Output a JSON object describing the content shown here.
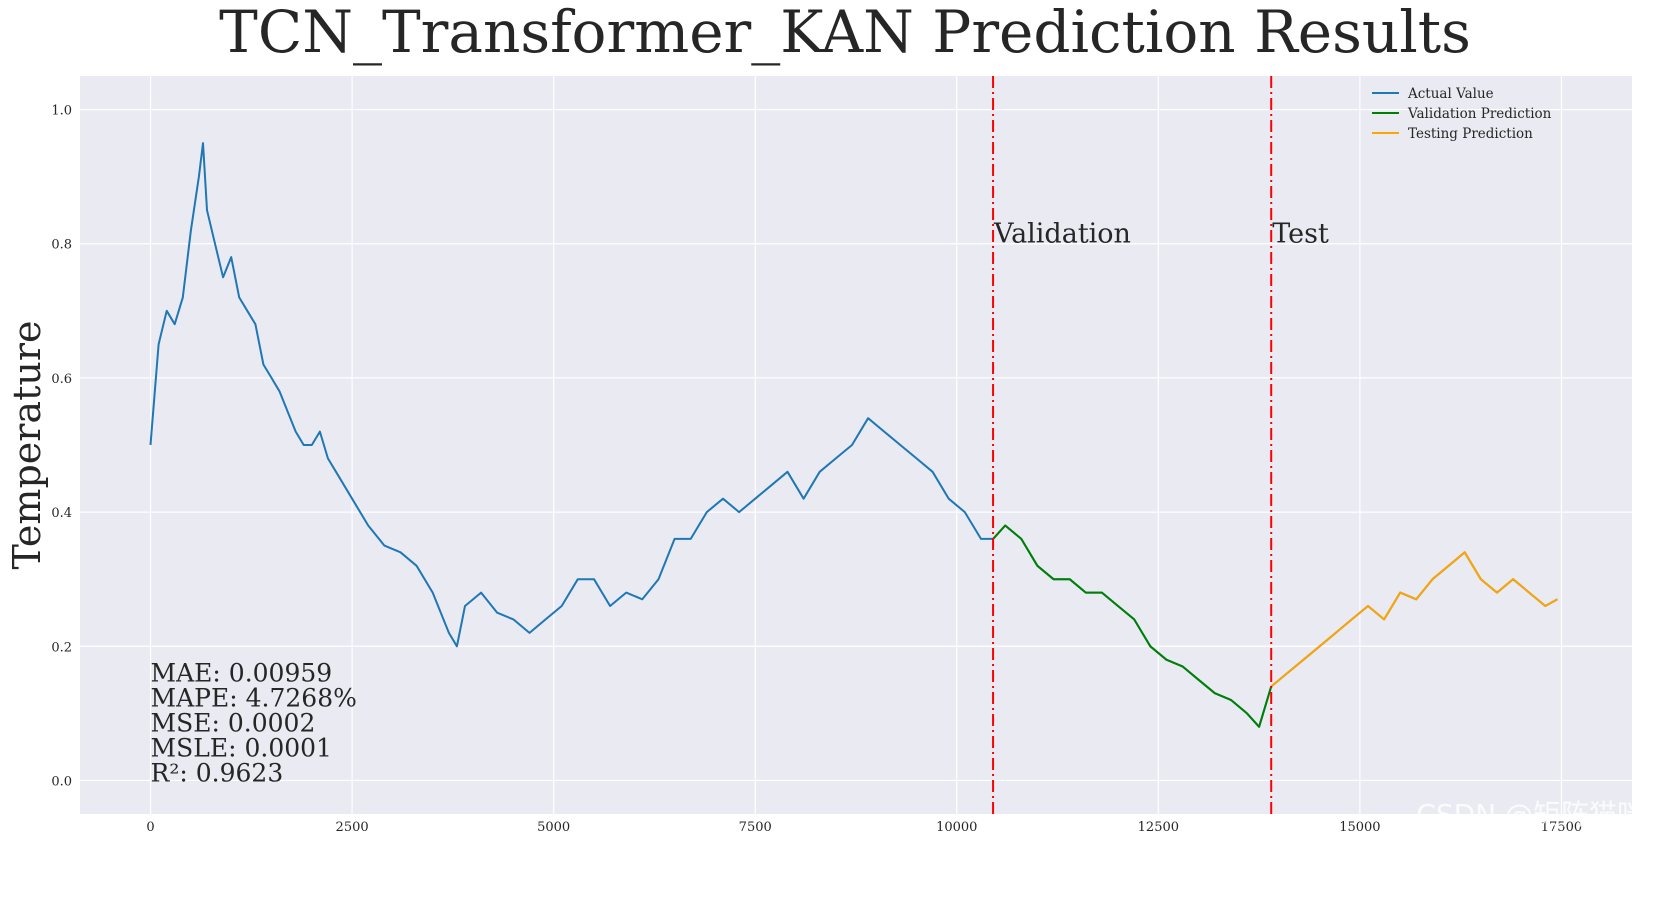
{
  "chart_data": {
    "type": "line",
    "title": "TCN_Transformer_KAN Prediction Results",
    "xlabel": "",
    "ylabel": "Temperature",
    "xlim": [
      -875,
      18375
    ],
    "ylim": [
      -0.05,
      1.05
    ],
    "x_ticks": [
      0,
      2500,
      5000,
      7500,
      10000,
      12500,
      15000,
      17500
    ],
    "x_tick_labels": [
      "0",
      "2500",
      "5000",
      "7500",
      "10000",
      "12500",
      "15000",
      "17500"
    ],
    "y_ticks": [
      0.0,
      0.2,
      0.4,
      0.6,
      0.8,
      1.0
    ],
    "y_tick_labels": [
      "0.0",
      "0.2",
      "0.4",
      "0.6",
      "0.8",
      "1.0"
    ],
    "grid": true,
    "legend_position": "top-right",
    "series": [
      {
        "name": "Actual Value",
        "color": "#1f77b4",
        "x": [
          0,
          100,
          200,
          300,
          400,
          500,
          600,
          650,
          700,
          800,
          900,
          1000,
          1100,
          1200,
          1300,
          1400,
          1500,
          1600,
          1700,
          1800,
          1900,
          2000,
          2100,
          2200,
          2300,
          2500,
          2700,
          2900,
          3100,
          3300,
          3500,
          3700,
          3800,
          3900,
          4100,
          4300,
          4500,
          4700,
          4900,
          5100,
          5300,
          5500,
          5700,
          5900,
          6100,
          6300,
          6500,
          6700,
          6900,
          7100,
          7300,
          7500,
          7700,
          7900,
          8100,
          8300,
          8500,
          8700,
          8900,
          9100,
          9300,
          9500,
          9700,
          9900,
          10100,
          10300,
          10450,
          10600,
          10800,
          11000,
          11200,
          11400,
          11600,
          11800,
          12000,
          12200,
          12400,
          12600,
          12800,
          13000,
          13200,
          13400,
          13600,
          13750,
          13900,
          14100,
          14300,
          14500,
          14700,
          14900,
          15100,
          15300,
          15500,
          15700,
          15900,
          16100,
          16300,
          16500,
          16700,
          16900,
          17100,
          17300,
          17450
        ],
        "y": [
          0.5,
          0.65,
          0.7,
          0.68,
          0.72,
          0.82,
          0.9,
          0.95,
          0.85,
          0.8,
          0.75,
          0.78,
          0.72,
          0.7,
          0.68,
          0.62,
          0.6,
          0.58,
          0.55,
          0.52,
          0.5,
          0.5,
          0.52,
          0.48,
          0.46,
          0.42,
          0.38,
          0.35,
          0.34,
          0.32,
          0.28,
          0.22,
          0.2,
          0.26,
          0.28,
          0.25,
          0.24,
          0.22,
          0.24,
          0.26,
          0.3,
          0.3,
          0.26,
          0.28,
          0.27,
          0.3,
          0.36,
          0.36,
          0.4,
          0.42,
          0.4,
          0.42,
          0.44,
          0.46,
          0.42,
          0.46,
          0.48,
          0.5,
          0.54,
          0.52,
          0.5,
          0.48,
          0.46,
          0.42,
          0.4,
          0.36,
          0.36,
          0.38,
          0.36,
          0.32,
          0.3,
          0.3,
          0.28,
          0.28,
          0.26,
          0.24,
          0.2,
          0.18,
          0.17,
          0.15,
          0.13,
          0.12,
          0.1,
          0.08,
          0.14,
          0.16,
          0.18,
          0.2,
          0.22,
          0.24,
          0.26,
          0.24,
          0.28,
          0.27,
          0.3,
          0.32,
          0.34,
          0.3,
          0.28,
          0.3,
          0.28,
          0.26,
          0.27
        ]
      },
      {
        "name": "Validation Prediction",
        "color": "#008000",
        "x": [
          10450,
          10600,
          10800,
          11000,
          11200,
          11400,
          11600,
          11800,
          12000,
          12200,
          12400,
          12600,
          12800,
          13000,
          13200,
          13400,
          13600,
          13750,
          13900
        ],
        "y": [
          0.36,
          0.38,
          0.36,
          0.32,
          0.3,
          0.3,
          0.28,
          0.28,
          0.26,
          0.24,
          0.2,
          0.18,
          0.17,
          0.15,
          0.13,
          0.12,
          0.1,
          0.08,
          0.14
        ]
      },
      {
        "name": "Testing Prediction",
        "color": "#ffa500",
        "x": [
          13900,
          14100,
          14300,
          14500,
          14700,
          14900,
          15100,
          15300,
          15500,
          15700,
          15900,
          16100,
          16300,
          16500,
          16700,
          16900,
          17100,
          17300,
          17450
        ],
        "y": [
          0.14,
          0.16,
          0.18,
          0.2,
          0.22,
          0.24,
          0.26,
          0.24,
          0.28,
          0.27,
          0.3,
          0.32,
          0.34,
          0.3,
          0.28,
          0.3,
          0.28,
          0.26,
          0.27
        ]
      }
    ],
    "split_lines": [
      {
        "x": 10450,
        "label": "Validation",
        "label_y": 0.8,
        "color": "#ff0000"
      },
      {
        "x": 13900,
        "label": "Test",
        "label_y": 0.8,
        "color": "#ff0000"
      }
    ],
    "annotations": [
      "MAE: 0.00959",
      "MAPE: 4.7268%",
      "MSE: 0.0002",
      "MSLE: 0.0001",
      "R²: 0.9623"
    ],
    "watermark": "CSDN @矩阵猫咪"
  }
}
